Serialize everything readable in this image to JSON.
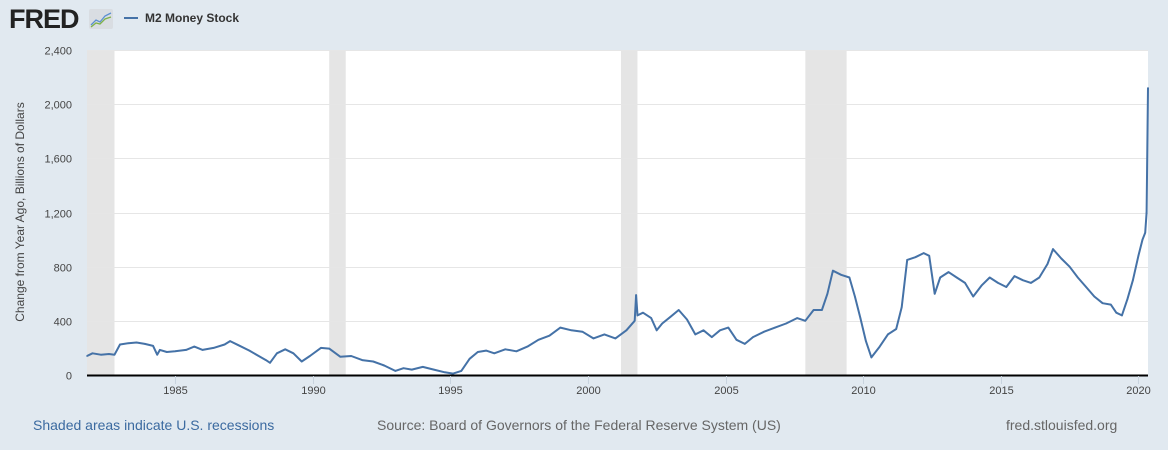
{
  "header": {
    "logo_text": "FRED",
    "logo_icon": "line-chart-icon"
  },
  "footer": {
    "recession_note": "Shaded areas indicate U.S. recessions",
    "source": "Source: Board of Governors of the Federal Reserve System (US)",
    "site": "fred.stlouisfed.org"
  },
  "colors": {
    "line": "#4572a7",
    "recession": "#e5e5e5",
    "background": "#e1e9f0",
    "plot": "#ffffff"
  },
  "chart_data": {
    "type": "line",
    "title": "",
    "legend": [
      "M2 Money Stock"
    ],
    "legend_position": "top-left",
    "ylabel": "Change from Year Ago, Billions of Dollars",
    "xlabel": "",
    "xlim": [
      1981.8,
      2020.35
    ],
    "ylim": [
      0,
      2400
    ],
    "yticks": [
      0,
      400,
      800,
      1200,
      1600,
      2000,
      2400
    ],
    "ytick_labels": [
      "0",
      "400",
      "800",
      "1,200",
      "1,600",
      "2,000",
      "2,400"
    ],
    "xticks": [
      1985,
      1990,
      1995,
      2000,
      2005,
      2010,
      2015,
      2020
    ],
    "xtick_labels": [
      "1985",
      "1990",
      "1995",
      "2000",
      "2005",
      "2010",
      "2015",
      "2020"
    ],
    "grid": true,
    "recessions": [
      [
        1981.8,
        1982.8
      ],
      [
        1990.6,
        1991.2
      ],
      [
        2001.2,
        2001.8
      ],
      [
        2007.9,
        2009.4
      ]
    ],
    "series": [
      {
        "name": "M2 Money Stock",
        "x": [
          1981.8,
          1982.0,
          1982.3,
          1982.6,
          1982.8,
          1983.0,
          1983.3,
          1983.6,
          1983.9,
          1984.2,
          1984.35,
          1984.45,
          1984.7,
          1985.0,
          1985.4,
          1985.7,
          1986.0,
          1986.4,
          1986.8,
          1987.0,
          1987.3,
          1987.7,
          1988.0,
          1988.3,
          1988.45,
          1988.7,
          1989.0,
          1989.3,
          1989.6,
          1989.9,
          1990.3,
          1990.6,
          1991.0,
          1991.4,
          1991.8,
          1992.2,
          1992.6,
          1993.0,
          1993.3,
          1993.6,
          1994.0,
          1994.4,
          1994.8,
          1995.1,
          1995.4,
          1995.7,
          1996.0,
          1996.3,
          1996.6,
          1997.0,
          1997.4,
          1997.8,
          1998.2,
          1998.6,
          1999.0,
          1999.4,
          1999.8,
          2000.2,
          2000.6,
          2001.0,
          2001.4,
          2001.7,
          2001.75,
          2001.8,
          2002.0,
          2002.3,
          2002.5,
          2002.7,
          2003.0,
          2003.3,
          2003.6,
          2003.9,
          2004.2,
          2004.5,
          2004.8,
          2005.1,
          2005.4,
          2005.7,
          2006.0,
          2006.4,
          2006.8,
          2007.2,
          2007.6,
          2007.9,
          2008.2,
          2008.5,
          2008.7,
          2008.9,
          2009.2,
          2009.5,
          2009.7,
          2009.9,
          2010.1,
          2010.3,
          2010.6,
          2010.9,
          2011.2,
          2011.4,
          2011.6,
          2011.9,
          2012.2,
          2012.4,
          2012.6,
          2012.8,
          2013.1,
          2013.4,
          2013.7,
          2014.0,
          2014.3,
          2014.6,
          2014.9,
          2015.2,
          2015.5,
          2015.8,
          2016.1,
          2016.4,
          2016.7,
          2016.9,
          2017.2,
          2017.5,
          2017.8,
          2018.1,
          2018.4,
          2018.7,
          2019.0,
          2019.2,
          2019.4,
          2019.6,
          2019.8,
          2020.0,
          2020.15,
          2020.25,
          2020.3,
          2020.35
        ],
        "y": [
          140,
          160,
          150,
          155,
          150,
          225,
          235,
          240,
          230,
          215,
          150,
          185,
          170,
          175,
          185,
          210,
          185,
          200,
          225,
          250,
          220,
          180,
          145,
          110,
          90,
          160,
          190,
          160,
          100,
          140,
          200,
          195,
          135,
          140,
          110,
          100,
          70,
          30,
          50,
          40,
          60,
          40,
          20,
          10,
          30,
          120,
          170,
          180,
          160,
          190,
          175,
          210,
          260,
          290,
          350,
          330,
          320,
          270,
          300,
          270,
          330,
          400,
          590,
          440,
          460,
          420,
          330,
          380,
          430,
          480,
          410,
          300,
          330,
          280,
          330,
          350,
          260,
          230,
          280,
          320,
          350,
          380,
          420,
          400,
          480,
          480,
          600,
          770,
          740,
          720,
          580,
          420,
          250,
          130,
          210,
          300,
          340,
          500,
          850,
          870,
          900,
          880,
          600,
          720,
          760,
          720,
          680,
          580,
          660,
          720,
          680,
          650,
          730,
          700,
          680,
          720,
          820,
          930,
          860,
          800,
          720,
          650,
          580,
          530,
          520,
          460,
          440,
          560,
          700,
          880,
          1000,
          1050,
          1200,
          2120
        ]
      }
    ]
  }
}
